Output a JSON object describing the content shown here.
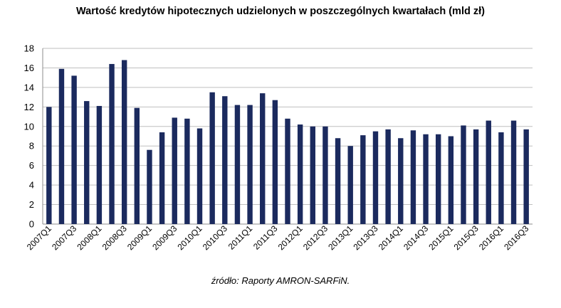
{
  "chart_data": {
    "type": "bar",
    "title": "Wartość kredytów hipotecznych udzielonych w poszczególnych kwartałach (mld zł)",
    "xlabel": "",
    "ylabel": "",
    "ylim": [
      0,
      18
    ],
    "yticks": [
      0,
      2,
      4,
      6,
      8,
      10,
      12,
      14,
      16,
      18
    ],
    "grid": true,
    "legend": "none",
    "bar_color": "#1b2a5e",
    "categories": [
      "2007Q1",
      "2007Q2",
      "2007Q3",
      "2007Q4",
      "2008Q1",
      "2008Q2",
      "2008Q3",
      "2008Q4",
      "2009Q1",
      "2009Q2",
      "2009Q3",
      "2009Q4",
      "2010Q1",
      "2010Q2",
      "2010Q3",
      "2010Q4",
      "2011Q1",
      "2011Q2",
      "2011Q3",
      "2011Q4",
      "2012Q1",
      "2012Q2",
      "2012Q3",
      "2012Q4",
      "2013Q1",
      "2013Q2",
      "2013Q3",
      "2013Q4",
      "2014Q1",
      "2014Q2",
      "2014Q3",
      "2014Q4",
      "2015Q1",
      "2015Q2",
      "2015Q3",
      "2015Q4",
      "2016Q1",
      "2016Q2",
      "2016Q3"
    ],
    "shown_tick_labels": [
      "2007Q1",
      "2007Q3",
      "2008Q1",
      "2008Q3",
      "2009Q1",
      "2009Q3",
      "2010Q1",
      "2010Q3",
      "2011Q1",
      "2011Q3",
      "2012Q1",
      "2012Q3",
      "2013Q1",
      "2013Q3",
      "2014Q1",
      "2014Q3",
      "2015Q1",
      "2015Q3",
      "2016Q1",
      "2016Q3"
    ],
    "values": [
      12.0,
      15.9,
      15.2,
      12.6,
      12.1,
      16.4,
      16.8,
      11.9,
      7.6,
      9.4,
      10.9,
      10.8,
      9.8,
      13.5,
      13.1,
      12.2,
      12.2,
      13.4,
      12.7,
      10.8,
      10.2,
      10.0,
      10.0,
      8.8,
      8.0,
      9.1,
      9.5,
      9.7,
      8.8,
      9.6,
      9.2,
      9.2,
      9.0,
      10.1,
      9.7,
      10.6,
      9.4,
      10.6,
      9.7
    ]
  },
  "source": "źródło: Raporty AMRON-SARFiN."
}
